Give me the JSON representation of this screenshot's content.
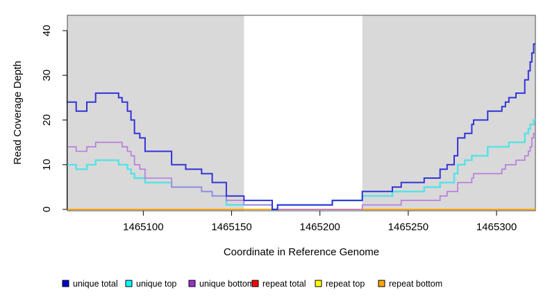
{
  "chart_data": {
    "type": "line",
    "subtype": "step",
    "title": "",
    "xlabel": "Coordinate in Reference Genome",
    "ylabel": "Read Coverage Depth",
    "xlim": [
      1465057,
      1465322
    ],
    "ylim": [
      0,
      40
    ],
    "x_ticks": [
      1465100,
      1465150,
      1465200,
      1465250,
      1465300
    ],
    "y_ticks": [
      0,
      10,
      20,
      30,
      40
    ],
    "grid": false,
    "legend_position": "bottom",
    "background": "#ffffff",
    "shade_color": "#d9d9d9",
    "shaded_regions": [
      [
        1465057,
        1465157
      ],
      [
        1465224,
        1465322
      ]
    ],
    "draw_order": [
      3,
      4,
      5,
      1,
      2,
      0
    ],
    "series": [
      {
        "name": "unique total",
        "legend_color": "#0000cc",
        "line_color": "#3232d8",
        "line_width": 2,
        "steps": [
          [
            1465057,
            24
          ],
          [
            1465062,
            22
          ],
          [
            1465068,
            24
          ],
          [
            1465073,
            26
          ],
          [
            1465086,
            25
          ],
          [
            1465088,
            24
          ],
          [
            1465091,
            22
          ],
          [
            1465093,
            20
          ],
          [
            1465095,
            17
          ],
          [
            1465098,
            16
          ],
          [
            1465101,
            13
          ],
          [
            1465116,
            10
          ],
          [
            1465124,
            9
          ],
          [
            1465133,
            8
          ],
          [
            1465139,
            6
          ],
          [
            1465147,
            3
          ],
          [
            1465157,
            2
          ],
          [
            1465173,
            0
          ],
          [
            1465176,
            1
          ],
          [
            1465207,
            2
          ],
          [
            1465224,
            4
          ],
          [
            1465241,
            5
          ],
          [
            1465246,
            6
          ],
          [
            1465259,
            7
          ],
          [
            1465268,
            9
          ],
          [
            1465272,
            10
          ],
          [
            1465276,
            12
          ],
          [
            1465278,
            16
          ],
          [
            1465282,
            17
          ],
          [
            1465286,
            19
          ],
          [
            1465287,
            20
          ],
          [
            1465295,
            22
          ],
          [
            1465303,
            23
          ],
          [
            1465305,
            24
          ],
          [
            1465307,
            25
          ],
          [
            1465311,
            26
          ],
          [
            1465316,
            29
          ],
          [
            1465318,
            31
          ],
          [
            1465319,
            33
          ],
          [
            1465320,
            35
          ],
          [
            1465321,
            37
          ]
        ]
      },
      {
        "name": "unique top",
        "legend_color": "#00ffff",
        "line_color": "#55e2e5",
        "line_width": 2.4,
        "steps": [
          [
            1465057,
            10
          ],
          [
            1465062,
            9
          ],
          [
            1465068,
            10
          ],
          [
            1465073,
            11
          ],
          [
            1465086,
            10
          ],
          [
            1465091,
            9
          ],
          [
            1465093,
            8
          ],
          [
            1465095,
            7
          ],
          [
            1465101,
            6
          ],
          [
            1465116,
            5
          ],
          [
            1465133,
            4
          ],
          [
            1465139,
            3
          ],
          [
            1465147,
            1
          ],
          [
            1465173,
            0
          ],
          [
            1465176,
            1
          ],
          [
            1465207,
            2
          ],
          [
            1465224,
            3
          ],
          [
            1465241,
            4
          ],
          [
            1465259,
            5
          ],
          [
            1465268,
            6
          ],
          [
            1465276,
            8
          ],
          [
            1465278,
            10
          ],
          [
            1465282,
            11
          ],
          [
            1465286,
            12
          ],
          [
            1465295,
            14
          ],
          [
            1465307,
            15
          ],
          [
            1465316,
            17
          ],
          [
            1465318,
            18
          ],
          [
            1465319,
            19
          ],
          [
            1465321,
            20
          ]
        ]
      },
      {
        "name": "unique bottom",
        "legend_color": "#9933cc",
        "line_color": "#b778dd",
        "line_width": 1.6,
        "steps": [
          [
            1465057,
            14
          ],
          [
            1465062,
            13
          ],
          [
            1465068,
            14
          ],
          [
            1465073,
            15
          ],
          [
            1465088,
            14
          ],
          [
            1465091,
            13
          ],
          [
            1465093,
            12
          ],
          [
            1465095,
            10
          ],
          [
            1465098,
            9
          ],
          [
            1465101,
            7
          ],
          [
            1465116,
            5
          ],
          [
            1465133,
            4
          ],
          [
            1465139,
            3
          ],
          [
            1465147,
            2
          ],
          [
            1465157,
            1
          ],
          [
            1465173,
            0
          ],
          [
            1465224,
            1
          ],
          [
            1465246,
            2
          ],
          [
            1465268,
            3
          ],
          [
            1465272,
            4
          ],
          [
            1465278,
            6
          ],
          [
            1465286,
            7
          ],
          [
            1465287,
            8
          ],
          [
            1465303,
            9
          ],
          [
            1465305,
            10
          ],
          [
            1465311,
            11
          ],
          [
            1465316,
            12
          ],
          [
            1465318,
            13
          ],
          [
            1465319,
            14
          ],
          [
            1465320,
            16
          ],
          [
            1465321,
            17
          ]
        ]
      },
      {
        "name": "repeat total",
        "legend_color": "#ff0000",
        "line_color": "#ff0000",
        "line_width": 1.2,
        "steps": [
          [
            1465057,
            0
          ],
          [
            1465322,
            0
          ]
        ]
      },
      {
        "name": "repeat top",
        "legend_color": "#ffff00",
        "line_color": "#ffff00",
        "line_width": 1.2,
        "steps": [
          [
            1465057,
            0
          ],
          [
            1465322,
            0
          ]
        ]
      },
      {
        "name": "repeat bottom",
        "legend_color": "#ffa500",
        "line_color": "#ffa500",
        "line_width": 1.7,
        "steps": [
          [
            1465057,
            0
          ],
          [
            1465322,
            0
          ]
        ]
      }
    ]
  }
}
